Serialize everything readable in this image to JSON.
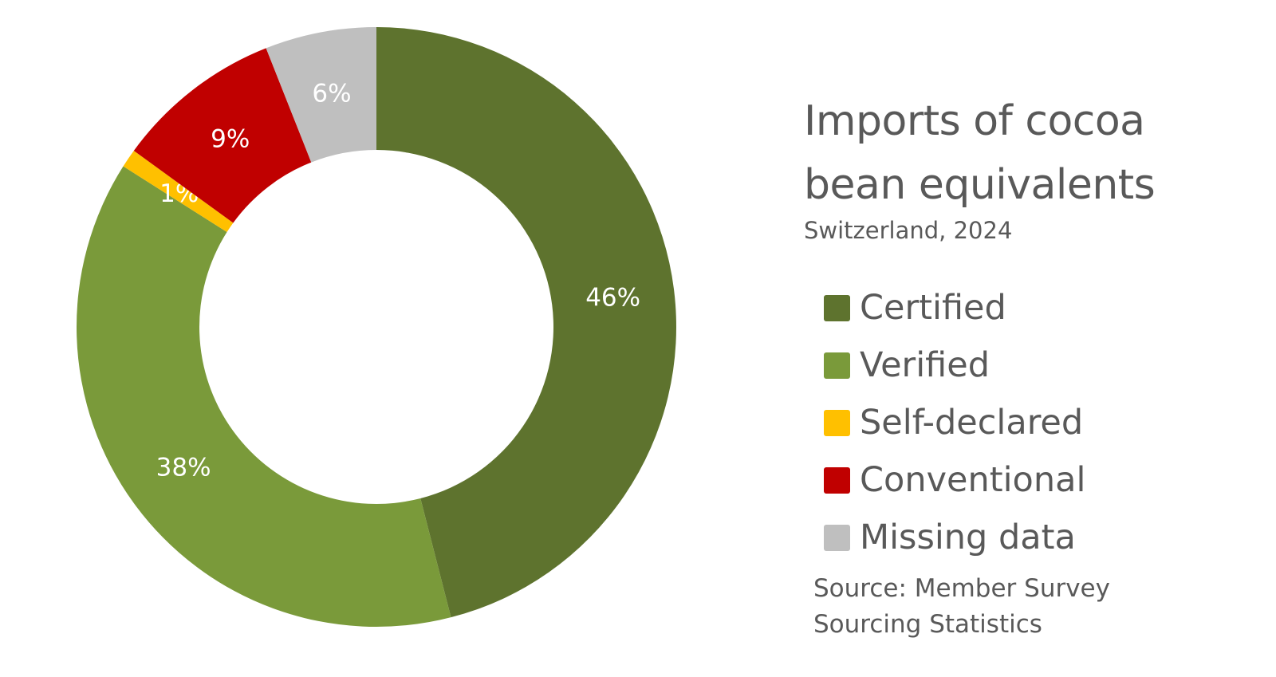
{
  "chart_data": {
    "type": "pie",
    "variant": "donut",
    "title": "Imports of cocoa bean equivalents",
    "subtitle": "Switzerland, 2024",
    "categories": [
      "Certified",
      "Verified",
      "Self-declared",
      "Conventional",
      "Missing data"
    ],
    "values": [
      46,
      38,
      1,
      9,
      6
    ],
    "data_labels": [
      "46%",
      "38%",
      "1%",
      "9%",
      "6%"
    ],
    "colors": [
      "#5e732e",
      "#7a9a3a",
      "#ffc000",
      "#c00000",
      "#bfbfbf"
    ],
    "legend_position": "right",
    "source_lines": [
      "Source: Member Survey",
      "Sourcing Statistics"
    ]
  }
}
